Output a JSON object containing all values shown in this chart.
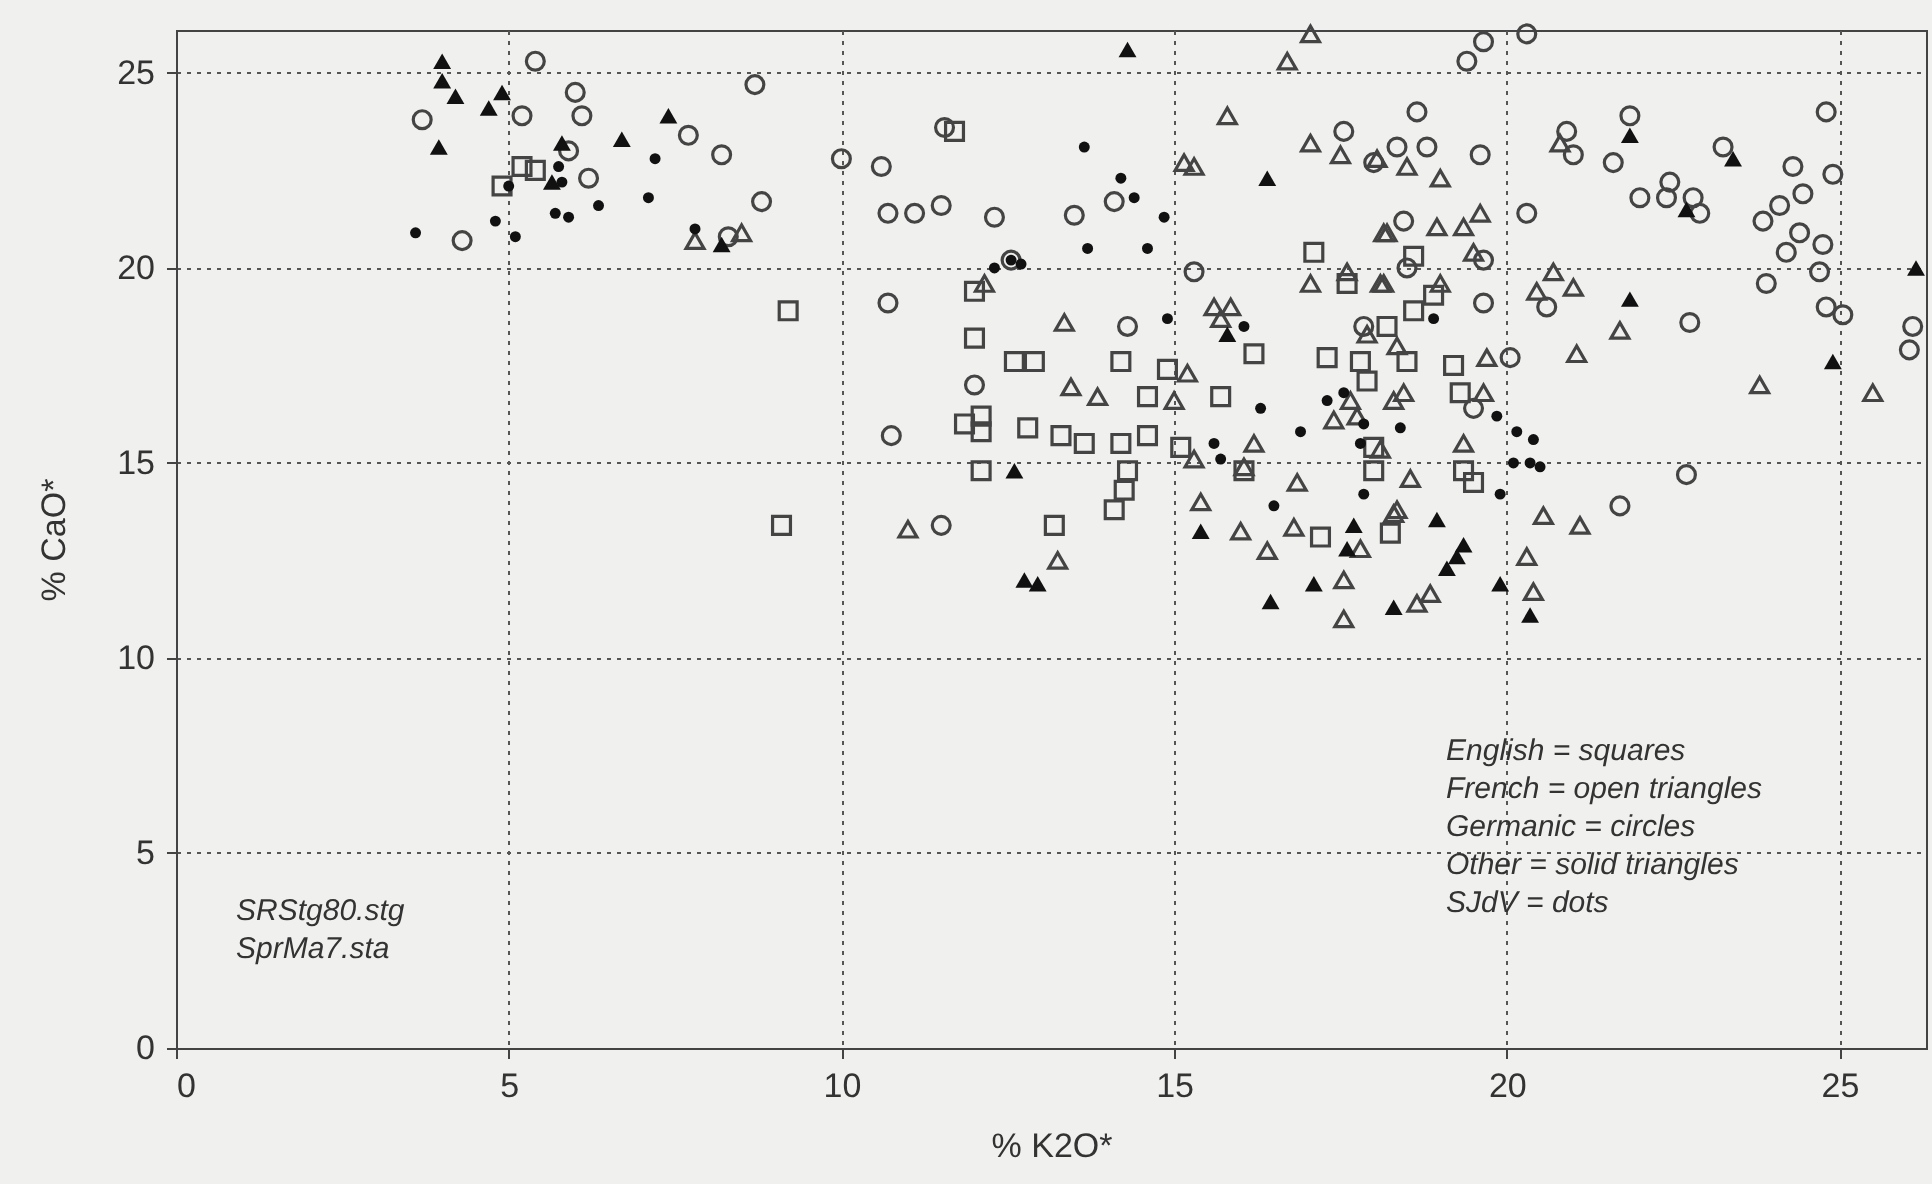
{
  "chart_data": {
    "type": "scatter",
    "xlabel": "% K2O*",
    "ylabel": "% CaO*",
    "xlim": [
      0,
      26.3
    ],
    "ylim": [
      0,
      26.1
    ],
    "xticks": [
      0,
      5,
      10,
      15,
      20,
      25
    ],
    "yticks": [
      0,
      5,
      10,
      15,
      20,
      25
    ],
    "grid": true,
    "annotations": [
      "SRStg80.stg",
      "SprMa7.sta",
      "English = squares",
      "French = open triangles",
      "Germanic = circles",
      "Other = solid triangles",
      "SJdV = dots"
    ],
    "series": [
      {
        "marker": "square",
        "color": "#444444",
        "x": [
          4.9,
          5.2,
          5.4,
          9.2,
          9.1,
          11.7,
          12.0,
          12.0,
          12.6,
          12.9,
          14.2,
          14.9,
          16.2,
          17.1,
          17.6,
          17.3,
          17.8,
          17.9,
          18.2,
          14.6,
          15.7,
          11.85,
          12.1,
          12.1,
          12.8,
          13.3,
          13.65,
          14.2,
          14.6,
          15.1,
          12.1,
          14.3,
          14.25,
          14.1,
          13.2,
          16.05,
          17.2,
          18.0,
          18.25,
          18.0,
          18.6,
          18.9,
          18.6,
          18.5,
          19.2,
          19.3,
          19.35,
          19.5
        ],
        "values": [
          22.1,
          22.6,
          22.5,
          18.9,
          13.4,
          23.5,
          19.4,
          18.2,
          17.6,
          17.6,
          17.6,
          17.4,
          17.8,
          20.4,
          19.6,
          17.7,
          17.6,
          17.1,
          18.5,
          16.7,
          16.7,
          16.0,
          16.2,
          15.8,
          15.9,
          15.7,
          15.5,
          15.5,
          15.7,
          15.4,
          14.8,
          14.8,
          14.3,
          13.8,
          13.4,
          14.8,
          13.1,
          14.8,
          13.2,
          15.4,
          20.3,
          19.3,
          18.9,
          17.6,
          17.5,
          16.8,
          14.8,
          14.5
        ]
      },
      {
        "marker": "triangle",
        "color": "#444444",
        "x": [
          7.8,
          8.5,
          17.05,
          16.7,
          15.8,
          15.15,
          15.3,
          17.05,
          17.5,
          18.15,
          17.05,
          17.6,
          18.1,
          12.15,
          13.35,
          15.6,
          15.85,
          15.7,
          17.9,
          13.45,
          13.85,
          15.2,
          15.0,
          16.2,
          15.3,
          16.05,
          16.85,
          15.4,
          16.0,
          16.8,
          16.4,
          17.55,
          17.55,
          11.0,
          13.25,
          17.4,
          17.75,
          17.65,
          17.8,
          18.1,
          18.3,
          18.3,
          20.8,
          18.5,
          18.05,
          19.0,
          18.2,
          18.95,
          19.35,
          19.6,
          19.5,
          18.15,
          19.0,
          20.7,
          20.45,
          21.0,
          21.7,
          21.05,
          19.7,
          18.35,
          18.45,
          19.65,
          23.8,
          25.5,
          19.35,
          18.55,
          18.35,
          20.55,
          21.1,
          20.3,
          20.4,
          18.65,
          18.85
        ],
        "values": [
          20.7,
          20.9,
          26.0,
          25.3,
          23.9,
          22.7,
          22.6,
          23.2,
          22.9,
          20.9,
          19.6,
          19.9,
          19.6,
          19.6,
          18.6,
          19.0,
          19.0,
          18.7,
          18.3,
          16.95,
          16.7,
          17.3,
          16.6,
          15.5,
          15.1,
          14.9,
          14.5,
          14.0,
          13.25,
          13.35,
          12.75,
          12.0,
          11.0,
          13.3,
          12.5,
          16.1,
          16.2,
          16.6,
          12.8,
          15.35,
          13.7,
          16.6,
          23.2,
          22.6,
          22.8,
          22.3,
          20.9,
          21.05,
          21.05,
          21.4,
          20.4,
          19.6,
          19.6,
          19.9,
          19.4,
          19.5,
          18.4,
          17.8,
          17.7,
          18.0,
          16.8,
          16.8,
          17.0,
          16.8,
          15.5,
          14.6,
          13.8,
          13.65,
          13.4,
          12.6,
          11.7,
          11.4,
          11.65
        ]
      },
      {
        "marker": "circle",
        "color": "#444444",
        "x": [
          5.4,
          6.0,
          3.7,
          5.2,
          6.1,
          5.9,
          6.2,
          4.3,
          7.7,
          8.2,
          8.7,
          10.0,
          8.8,
          8.3,
          10.6,
          10.7,
          11.1,
          11.5,
          11.55,
          12.3,
          13.5,
          14.1,
          12.55,
          15.3,
          10.7,
          14.3,
          12.0,
          17.55,
          17.85,
          18.0,
          10.75,
          11.5,
          19.65,
          19.4,
          20.3,
          18.65,
          18.35,
          18.8,
          19.6,
          18.45,
          18.5,
          19.65,
          19.65,
          20.05,
          20.3,
          20.9,
          21.0,
          21.6,
          21.85,
          20.6,
          22.0,
          22.45,
          22.4,
          22.8,
          22.9,
          23.25,
          22.75,
          24.3,
          24.8,
          24.9,
          24.45,
          24.1,
          23.85,
          24.4,
          24.75,
          24.2,
          24.7,
          23.9,
          24.8,
          25.05,
          26.1,
          26.05,
          22.7,
          21.7,
          19.5
        ],
        "values": [
          25.3,
          24.5,
          23.8,
          23.9,
          23.9,
          23.0,
          22.3,
          20.7,
          23.4,
          22.9,
          24.7,
          22.8,
          21.7,
          20.8,
          22.6,
          21.4,
          21.4,
          21.6,
          23.6,
          21.3,
          21.35,
          21.7,
          20.2,
          19.9,
          19.1,
          18.5,
          17.0,
          23.5,
          18.5,
          22.7,
          15.7,
          13.4,
          25.8,
          25.3,
          26.0,
          24.0,
          23.1,
          23.1,
          22.9,
          21.2,
          20.0,
          20.2,
          19.1,
          17.7,
          21.4,
          23.5,
          22.9,
          22.7,
          23.9,
          19.0,
          21.8,
          22.2,
          21.8,
          21.8,
          21.4,
          23.1,
          18.6,
          22.6,
          24.0,
          22.4,
          21.9,
          21.6,
          21.2,
          20.9,
          20.6,
          20.4,
          19.9,
          19.6,
          19.0,
          18.8,
          18.5,
          17.9,
          14.7,
          13.9,
          16.4
        ]
      },
      {
        "marker": "triangle",
        "color": "#111111",
        "x": [
          4.0,
          4.0,
          4.2,
          4.7,
          4.9,
          3.95,
          5.8,
          5.65,
          6.7,
          7.4,
          8.2,
          14.3,
          16.4,
          15.8,
          12.6,
          12.75,
          12.95,
          15.4,
          16.45,
          17.1,
          17.7,
          17.6,
          18.3,
          18.95,
          19.35,
          19.25,
          19.1,
          19.9,
          20.35,
          24.9,
          21.85,
          23.4,
          22.7,
          21.85,
          26.15
        ],
        "values": [
          25.3,
          24.8,
          24.4,
          24.1,
          24.5,
          23.1,
          23.2,
          22.2,
          23.3,
          23.9,
          20.6,
          25.6,
          22.3,
          18.3,
          14.8,
          12.0,
          11.9,
          13.25,
          11.45,
          11.9,
          13.4,
          12.8,
          11.3,
          13.55,
          12.9,
          12.6,
          12.3,
          11.9,
          11.1,
          17.6,
          23.4,
          22.8,
          21.5,
          19.2,
          20.0
        ]
      },
      {
        "marker": "circle",
        "color": "#111111",
        "x": [
          3.6,
          4.8,
          5.1,
          5.0,
          5.75,
          5.8,
          5.7,
          5.9,
          6.35,
          7.1,
          7.2,
          7.8,
          13.65,
          14.2,
          14.4,
          14.85,
          13.7,
          14.6,
          12.3,
          12.55,
          12.7,
          14.9,
          16.05,
          16.3,
          15.6,
          15.7,
          16.9,
          16.5,
          17.3,
          17.55,
          17.85,
          17.85,
          17.8,
          18.4,
          19.85,
          20.15,
          20.4,
          20.1,
          20.35,
          20.5,
          19.9,
          18.9
        ],
        "values": [
          20.9,
          21.2,
          20.8,
          22.1,
          22.6,
          22.2,
          21.4,
          21.3,
          21.6,
          21.8,
          22.8,
          21.0,
          23.1,
          22.3,
          21.8,
          21.3,
          20.5,
          20.5,
          20.0,
          20.2,
          20.1,
          18.7,
          18.5,
          16.4,
          15.5,
          15.1,
          15.8,
          13.9,
          16.6,
          16.8,
          16.0,
          14.2,
          15.5,
          15.9,
          16.2,
          15.8,
          15.6,
          15.0,
          15.0,
          14.9,
          14.2,
          18.7
        ]
      }
    ]
  }
}
